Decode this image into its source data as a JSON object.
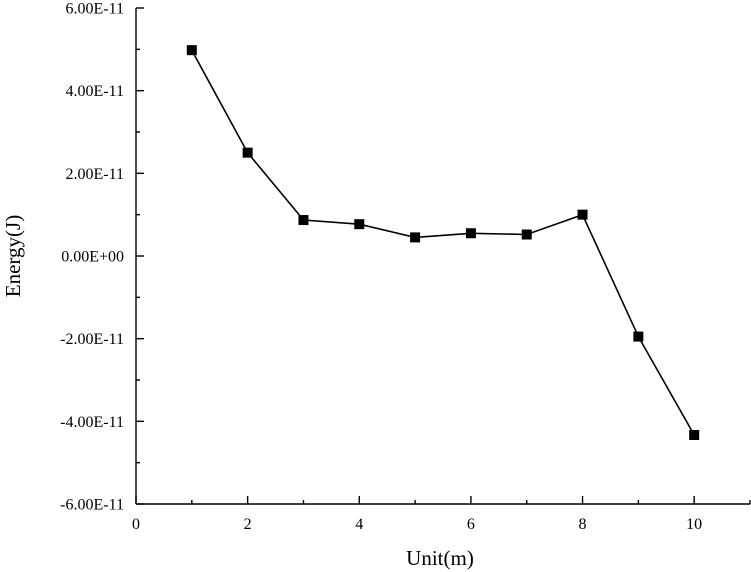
{
  "chart_data": {
    "type": "line",
    "title": "",
    "xlabel": "Unit(m)",
    "ylabel": "Energy(J)",
    "xlim": [
      0,
      11
    ],
    "ylim": [
      -6e-11,
      6e-11
    ],
    "x_ticks": [
      0,
      2,
      4,
      6,
      8,
      10
    ],
    "x_tick_labels": [
      "0",
      "2",
      "4",
      "6",
      "8",
      "10"
    ],
    "y_ticks": [
      -6e-11,
      -4e-11,
      -2e-11,
      0,
      2e-11,
      4e-11,
      6e-11
    ],
    "y_tick_labels": [
      "-6.00E-11",
      "-4.00E-11",
      "-2.00E-11",
      "0.00E+00",
      "2.00E-11",
      "4.00E-11",
      "6.00E-11"
    ],
    "grid": false,
    "legend": "none",
    "series": [
      {
        "marker": "square",
        "color": "#000000",
        "x": [
          1,
          2,
          3,
          4,
          5,
          6,
          7,
          8,
          9,
          10
        ],
        "y": [
          4.98e-11,
          2.5e-11,
          8.7e-12,
          7.7e-12,
          4.5e-12,
          5.5e-12,
          5.2e-12,
          1e-11,
          -1.95e-11,
          -4.33e-11
        ]
      }
    ]
  }
}
